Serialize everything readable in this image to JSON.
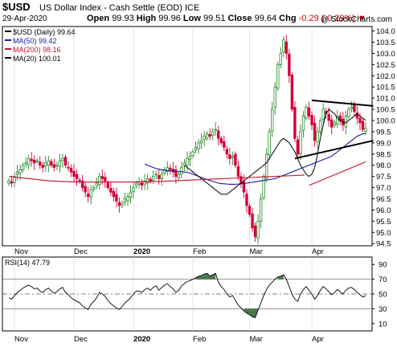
{
  "header": {
    "symbol": "$USD",
    "name": "US Dollar Index - Cash Settle (EOD) ICE",
    "date": "29-Apr-2020",
    "open_label": "Open",
    "open": "99.93",
    "high_label": "High",
    "high": "99.96",
    "low_label": "Low",
    "low": "99.51",
    "close_label": "Close",
    "close": "99.64",
    "chg_label": "Chg",
    "chg": "-0.29 (-0.29%)",
    "chg_arrow": "▼",
    "watermark": "@ StockCharts.com"
  },
  "colors": {
    "up": "#2a8a2a",
    "down": "#d4003c",
    "ma50": "#1a1aa0",
    "ma200": "#c8102e",
    "ma20": "#000000",
    "rsi_fill": "#4a7a4a"
  },
  "chart_data": [
    {
      "type": "candlestick",
      "legend": [
        {
          "label": "$USD (Daily) 99.64",
          "color": "#000000"
        },
        {
          "label": "MA(50) 99.42",
          "color": "#1a1aa0"
        },
        {
          "label": "MA(200) 98.16",
          "color": "#c8102e"
        },
        {
          "label": "MA(20) 100.01",
          "color": "#000000"
        }
      ],
      "ylim": [
        94.4,
        104.2
      ],
      "y_ticks": [
        94.5,
        95.0,
        95.5,
        96.0,
        96.5,
        97.0,
        97.5,
        98.0,
        98.5,
        99.0,
        99.5,
        100.0,
        100.5,
        101.0,
        101.5,
        102.0,
        102.5,
        103.0,
        103.5,
        104.0
      ],
      "x_labels": [
        {
          "label": "Nov",
          "index": 2
        },
        {
          "label": "Dec",
          "index": 23
        },
        {
          "label": "2020",
          "index": 44,
          "bold": true
        },
        {
          "label": "Feb",
          "index": 65
        },
        {
          "label": "Mar",
          "index": 85
        },
        {
          "label": "Apr",
          "index": 107
        }
      ],
      "n": 127,
      "closes": [
        97.3,
        97.2,
        97.5,
        97.7,
        97.8,
        98.0,
        98.1,
        98.3,
        98.2,
        98.1,
        98.2,
        98.0,
        97.9,
        98.1,
        98.2,
        98.0,
        97.9,
        98.0,
        98.2,
        98.3,
        98.0,
        97.9,
        97.7,
        97.5,
        97.4,
        97.3,
        97.0,
        96.8,
        96.6,
        96.9,
        97.0,
        97.2,
        97.5,
        97.4,
        97.3,
        97.0,
        96.8,
        96.6,
        96.4,
        96.2,
        96.3,
        96.5,
        96.6,
        96.8,
        97.0,
        97.2,
        97.2,
        97.1,
        97.3,
        97.4,
        97.3,
        97.5,
        97.6,
        97.4,
        97.6,
        97.8,
        97.9,
        97.8,
        97.7,
        97.5,
        97.6,
        97.9,
        98.1,
        98.3,
        98.4,
        98.6,
        98.8,
        99.0,
        99.1,
        99.3,
        99.4,
        99.3,
        99.5,
        99.6,
        99.2,
        99.0,
        98.8,
        98.5,
        98.3,
        98.4,
        98.0,
        97.5,
        97.2,
        96.8,
        96.2,
        95.8,
        95.2,
        94.8,
        95.5,
        96.5,
        97.5,
        98.5,
        99.5,
        100.5,
        101.5,
        102.5,
        103.0,
        103.6,
        103.0,
        102.0,
        100.5,
        99.2,
        98.5,
        99.5,
        100.2,
        100.6,
        100.2,
        99.8,
        99.1,
        99.5,
        100.0,
        100.5,
        100.3,
        100.0,
        99.7,
        99.9,
        100.2,
        100.0,
        99.8,
        100.2,
        100.5,
        100.6,
        100.4,
        100.1,
        99.9,
        99.6,
        99.64
      ],
      "ma_series": [
        {
          "name": "MA(50)",
          "color": "#1a1aa0",
          "values": [
            98.05,
            98.0,
            97.95,
            97.9,
            97.85,
            97.82,
            97.8,
            97.78,
            97.76,
            97.75,
            97.74,
            97.73,
            97.72,
            97.71,
            97.7,
            97.68,
            97.65,
            97.6,
            97.55,
            97.5,
            97.45,
            97.4,
            97.36,
            97.32,
            97.28,
            97.24,
            97.2,
            97.18,
            97.17,
            97.16,
            97.15,
            97.15,
            97.15,
            97.16,
            97.17,
            97.18,
            97.2,
            97.22,
            97.24,
            97.26,
            97.28,
            97.3,
            97.32,
            97.34,
            97.36,
            97.38,
            97.4,
            97.45,
            97.5,
            97.55,
            97.6,
            97.65,
            97.7,
            97.75,
            97.8,
            97.85,
            97.9,
            97.95,
            98.0,
            98.05,
            98.1,
            98.15,
            98.2,
            98.25,
            98.3,
            98.35,
            98.4,
            98.5,
            98.6,
            98.7,
            98.8,
            98.9,
            99.0,
            99.1,
            99.2,
            99.3,
            99.35,
            99.4,
            99.42
          ],
          "start": 48
        },
        {
          "name": "MA(200)",
          "color": "#c8102e",
          "values": [
            97.1,
            97.15,
            97.2,
            97.25,
            97.3,
            97.35,
            97.4,
            97.45,
            97.5,
            97.55,
            97.6,
            97.65,
            97.7,
            97.75,
            97.8,
            97.85,
            97.9,
            97.95,
            98.0,
            98.05,
            98.1,
            98.16
          ],
          "start": 106,
          "prefix_from": 97.1
        },
        {
          "name": "MA(20)",
          "color": "#000000",
          "values": [
            98.0,
            97.9,
            97.8,
            97.7,
            97.6,
            97.5,
            97.4,
            97.3,
            97.2,
            97.1,
            97.0,
            96.9,
            96.8,
            96.7,
            96.7,
            96.7,
            96.8,
            96.9,
            97.0,
            97.1,
            97.2,
            97.3,
            97.4,
            97.5,
            97.6,
            97.7,
            97.8,
            97.9,
            98.0,
            98.1,
            98.3,
            98.5,
            98.7,
            98.9,
            99.1,
            99.2,
            99.1,
            99.0,
            98.8,
            98.6,
            98.3,
            98.0,
            97.8,
            97.6,
            97.5,
            97.6,
            97.9,
            98.5,
            99.2,
            99.8,
            100.3,
            100.5,
            100.4,
            100.3,
            100.1,
            100.0,
            99.9,
            99.9,
            100.0,
            100.1,
            100.2,
            100.3,
            100.2,
            100.1,
            100.01
          ],
          "start": 62
        },
        {
          "name": "MA200_early",
          "color": "#c8102e",
          "values": [
            97.5,
            97.45,
            97.4,
            97.35,
            97.3,
            97.28,
            97.26,
            97.25,
            97.25,
            97.25,
            97.25,
            97.25,
            97.25,
            97.26,
            97.27,
            97.28,
            97.3,
            97.32,
            97.34,
            97.36,
            97.38,
            97.4,
            97.42,
            97.44,
            97.46,
            97.48,
            97.5,
            97.52,
            97.54,
            97.56
          ],
          "start": 0,
          "step": 3.6
        }
      ],
      "trendlines": [
        {
          "from": [
            107,
            100.9
          ],
          "to": [
            127,
            100.65
          ]
        },
        {
          "from": [
            101,
            98.3
          ],
          "to": [
            127,
            99.1
          ]
        }
      ]
    },
    {
      "type": "line",
      "legend": [
        {
          "label": "RSI(14) 47.79",
          "color": "#000000"
        }
      ],
      "ylim": [
        0,
        100
      ],
      "y_ticks": [
        10,
        30,
        50,
        70,
        90
      ],
      "reference_lines": [
        30,
        50,
        70
      ],
      "values": [
        45,
        43,
        48,
        52,
        55,
        58,
        60,
        62,
        60,
        57,
        58,
        54,
        52,
        56,
        58,
        54,
        51,
        53,
        57,
        59,
        52,
        49,
        45,
        42,
        40,
        38,
        34,
        31,
        29,
        36,
        40,
        45,
        52,
        50,
        47,
        41,
        37,
        34,
        31,
        29,
        33,
        38,
        41,
        45,
        50,
        54,
        54,
        52,
        56,
        58,
        55,
        59,
        61,
        55,
        59,
        62,
        64,
        60,
        57,
        52,
        55,
        61,
        64,
        67,
        68,
        70,
        72,
        74,
        75,
        77,
        78,
        74,
        76,
        78,
        66,
        60,
        56,
        50,
        46,
        48,
        41,
        35,
        31,
        27,
        24,
        22,
        19,
        18,
        28,
        38,
        48,
        56,
        62,
        66,
        70,
        73,
        74,
        76,
        70,
        60,
        50,
        43,
        40,
        50,
        56,
        60,
        55,
        50,
        43,
        48,
        55,
        60,
        57,
        53,
        49,
        52,
        56,
        53,
        50,
        55,
        58,
        59,
        56,
        52,
        49,
        46,
        47.79
      ]
    }
  ]
}
